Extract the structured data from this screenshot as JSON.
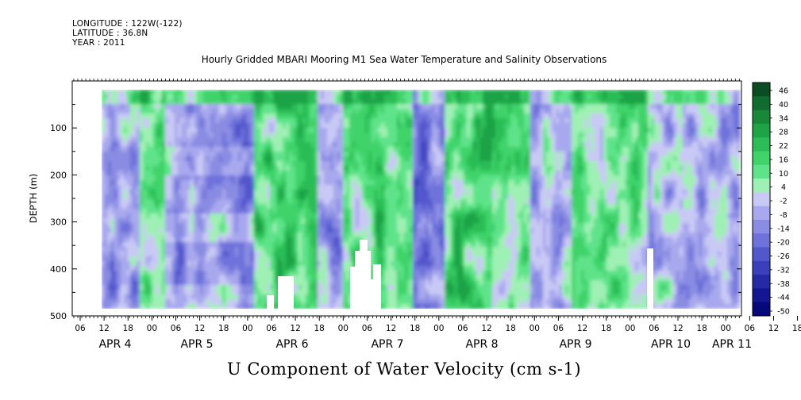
{
  "header": {
    "longitude": "LONGITUDE : 122W(-122)",
    "latitude": "LATITUDE : 36.8N",
    "year": "YEAR : 2011"
  },
  "chart_data": {
    "type": "heatmap",
    "title": "Hourly Gridded MBARI Mooring M1 Sea Water Temperature and Salinity Observations",
    "xlabel": "U Component of Water Velocity (cm s-1)",
    "ylabel": "DEPTH (m)",
    "ylim": [
      500,
      0
    ],
    "yticks": [
      100,
      200,
      300,
      400,
      500
    ],
    "ytick_labels": [
      "100",
      "200",
      "300",
      "400",
      "500"
    ],
    "hour_labels": [
      "06",
      "12",
      "18",
      "00",
      "06",
      "12",
      "18",
      "00",
      "06",
      "12",
      "18",
      "00",
      "06",
      "12",
      "18",
      "00",
      "06",
      "12",
      "18",
      "00",
      "06",
      "12",
      "18",
      "00",
      "06",
      "12",
      "18",
      "00",
      "06",
      "12",
      "18",
      "00"
    ],
    "day_labels": [
      "APR  4",
      "APR  5",
      "APR  6",
      "APR  7",
      "APR  8",
      "APR  9",
      "APR 10",
      "APR 11"
    ],
    "colorbar": {
      "levels": [
        "46",
        "40",
        "34",
        "28",
        "22",
        "16",
        "10",
        "4",
        "-2",
        "-8",
        "-14",
        "-20",
        "-26",
        "-32",
        "-38",
        "-44",
        "-50"
      ],
      "colors": [
        "#0a4d23",
        "#0f6b2e",
        "#17883a",
        "#1fa347",
        "#2cbd57",
        "#3fd36a",
        "#5ee38a",
        "#9ff0b4",
        "#c9c9f5",
        "#a8a8ee",
        "#8a8ce3",
        "#6e72da",
        "#5257cc",
        "#3a40bb",
        "#2429a6",
        "#131690",
        "#06087a"
      ]
    }
  }
}
